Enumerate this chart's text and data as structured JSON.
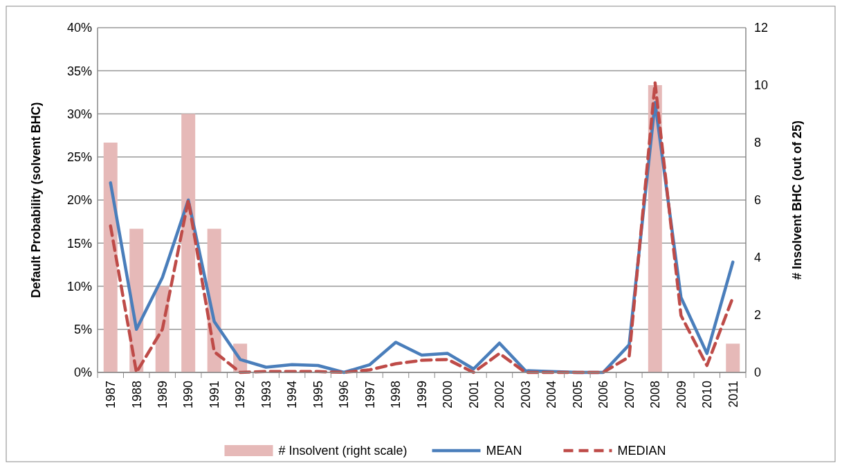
{
  "chart_data": {
    "type": "line",
    "ylabel": "Default Probability (solvent BHC)",
    "y2label": "# Insolvent BHC (out of 25)",
    "categories": [
      "1987",
      "1988",
      "1989",
      "1990",
      "1991",
      "1992",
      "1993",
      "1994",
      "1995",
      "1996",
      "1997",
      "1998",
      "1999",
      "2000",
      "2001",
      "2002",
      "2003",
      "2004",
      "2005",
      "2006",
      "2007",
      "2008",
      "2009",
      "2010",
      "2011"
    ],
    "series": [
      {
        "name": "# Insolvent (right scale)",
        "type": "bar",
        "axis": "y2",
        "color": "#e6b9b8",
        "values": [
          8,
          5,
          3,
          9,
          5,
          1,
          0,
          0,
          0,
          0,
          0,
          0,
          0,
          0,
          0,
          0,
          0,
          0,
          0,
          0,
          0,
          10,
          0,
          0,
          1
        ]
      },
      {
        "name": "MEAN",
        "color": "#4a7ebb",
        "line_style": "solid",
        "values": [
          22,
          5,
          11,
          20,
          5.9,
          1.5,
          0.6,
          0.9,
          0.8,
          0,
          0.9,
          3.5,
          2,
          2.2,
          0.4,
          3.4,
          0.2,
          0.1,
          0,
          0,
          3.2,
          31.3,
          8.7,
          2.2,
          12.8
        ]
      },
      {
        "name": "MEDIAN",
        "color": "#be4b48",
        "line_style": "dashed",
        "values": [
          17,
          0,
          5,
          20,
          2.4,
          0,
          0.1,
          0.1,
          0.1,
          0,
          0.3,
          1,
          1.4,
          1.5,
          0,
          2.2,
          0,
          0,
          0,
          0,
          1.8,
          33.6,
          6.6,
          0.8,
          8.7
        ]
      }
    ],
    "ylim": [
      0,
      40
    ],
    "yticks": [
      {
        "value": 0,
        "label": "0%"
      },
      {
        "value": 5,
        "label": "5%"
      },
      {
        "value": 10,
        "label": "10%"
      },
      {
        "value": 15,
        "label": "15%"
      },
      {
        "value": 20,
        "label": "20%"
      },
      {
        "value": 25,
        "label": "25%"
      },
      {
        "value": 30,
        "label": "30%"
      },
      {
        "value": 35,
        "label": "35%"
      },
      {
        "value": 40,
        "label": "40%"
      }
    ],
    "y2lim": [
      0,
      12
    ],
    "y2ticks": [
      0,
      2,
      4,
      6,
      8,
      10,
      12
    ],
    "grid": "y",
    "legend": "bottom"
  }
}
